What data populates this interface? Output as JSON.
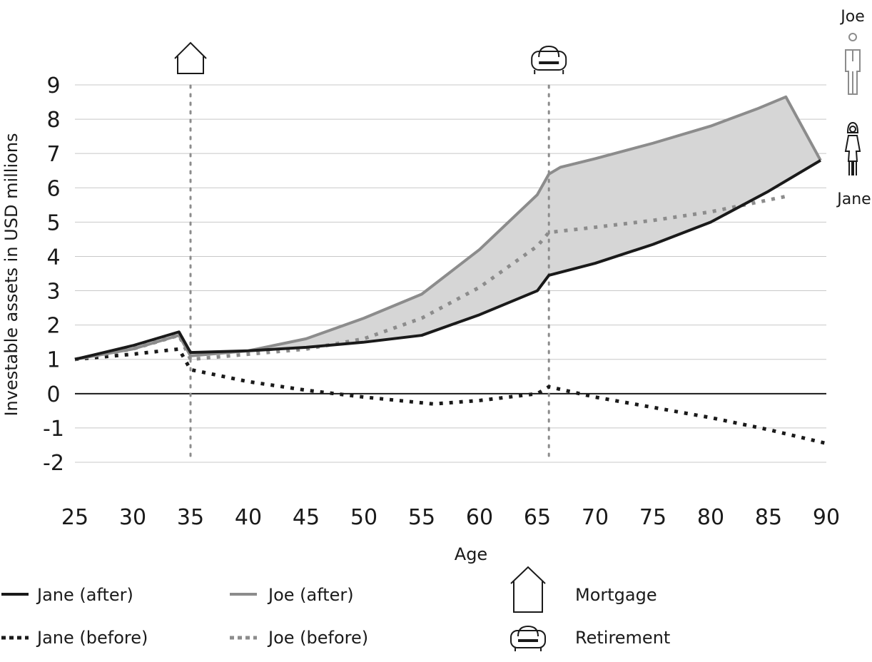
{
  "chart_data": {
    "type": "line",
    "title": "",
    "xlabel": "Age",
    "ylabel": "Investable assets in USD millions",
    "xlim": [
      25,
      90
    ],
    "ylim": [
      -2,
      9
    ],
    "x_ticks": [
      "25",
      "30",
      "35",
      "40",
      "45",
      "50",
      "55",
      "60",
      "65",
      "70",
      "75",
      "80",
      "85",
      "90"
    ],
    "y_ticks": [
      "9",
      "8",
      "7",
      "6",
      "5",
      "4",
      "3",
      "2",
      "1",
      "0",
      "-1",
      "-2"
    ],
    "grid": true,
    "shaded_region": "between Joe (after) and Jane (after)",
    "events": [
      {
        "name": "Mortgage",
        "age": 35,
        "icon": "house-icon"
      },
      {
        "name": "Retirement",
        "age": 66,
        "icon": "armchair-icon"
      }
    ],
    "series": [
      {
        "name": "Jane (after)",
        "style": "solid",
        "color": "#1a1a1a",
        "points": [
          [
            25,
            1.0
          ],
          [
            30,
            1.4
          ],
          [
            34,
            1.8
          ],
          [
            35,
            1.2
          ],
          [
            40,
            1.25
          ],
          [
            45,
            1.35
          ],
          [
            50,
            1.5
          ],
          [
            55,
            1.7
          ],
          [
            60,
            2.3
          ],
          [
            65,
            3.0
          ],
          [
            66,
            3.45
          ],
          [
            70,
            3.8
          ],
          [
            75,
            4.35
          ],
          [
            80,
            5.0
          ],
          [
            85,
            5.9
          ],
          [
            89.5,
            6.8
          ]
        ]
      },
      {
        "name": "Jane (before)",
        "style": "dotted",
        "color": "#1a1a1a",
        "points": [
          [
            25,
            1.0
          ],
          [
            30,
            1.15
          ],
          [
            34,
            1.3
          ],
          [
            35,
            0.7
          ],
          [
            40,
            0.35
          ],
          [
            45,
            0.1
          ],
          [
            50,
            -0.1
          ],
          [
            56,
            -0.3
          ],
          [
            60,
            -0.2
          ],
          [
            65,
            0.0
          ],
          [
            66,
            0.2
          ],
          [
            70,
            -0.1
          ],
          [
            75,
            -0.4
          ],
          [
            80,
            -0.7
          ],
          [
            85,
            -1.05
          ],
          [
            90,
            -1.45
          ]
        ]
      },
      {
        "name": "Joe (after)",
        "style": "solid",
        "color": "#8c8c8c",
        "points": [
          [
            25,
            1.0
          ],
          [
            30,
            1.3
          ],
          [
            34,
            1.7
          ],
          [
            35,
            1.1
          ],
          [
            40,
            1.25
          ],
          [
            45,
            1.6
          ],
          [
            50,
            2.2
          ],
          [
            55,
            2.9
          ],
          [
            60,
            4.2
          ],
          [
            65,
            5.8
          ],
          [
            66,
            6.4
          ],
          [
            67,
            6.6
          ],
          [
            70,
            6.85
          ],
          [
            75,
            7.3
          ],
          [
            80,
            7.8
          ],
          [
            84,
            8.3
          ],
          [
            86.5,
            8.65
          ],
          [
            89.5,
            6.8
          ]
        ]
      },
      {
        "name": "Joe (before)",
        "style": "dotted",
        "color": "#8c8c8c",
        "points": [
          [
            25,
            1.0
          ],
          [
            30,
            1.3
          ],
          [
            34,
            1.7
          ],
          [
            35,
            1.0
          ],
          [
            40,
            1.15
          ],
          [
            45,
            1.3
          ],
          [
            50,
            1.6
          ],
          [
            55,
            2.2
          ],
          [
            60,
            3.1
          ],
          [
            65,
            4.3
          ],
          [
            66,
            4.7
          ],
          [
            70,
            4.85
          ],
          [
            75,
            5.05
          ],
          [
            80,
            5.3
          ],
          [
            86.5,
            5.75
          ]
        ]
      }
    ]
  },
  "people": {
    "joe": {
      "label": "Joe",
      "icon": "man-icon"
    },
    "jane": {
      "label": "Jane",
      "icon": "woman-icon"
    }
  },
  "legend": [
    {
      "label": "Jane (after)",
      "style": "solid",
      "color": "#1a1a1a"
    },
    {
      "label": "Jane (before)",
      "style": "dotted",
      "color": "#1a1a1a"
    },
    {
      "label": "Joe (after)",
      "style": "solid",
      "color": "#8c8c8c"
    },
    {
      "label": "Joe (before)",
      "style": "dotted",
      "color": "#8c8c8c"
    },
    {
      "label": "Mortgage",
      "icon": "house-icon"
    },
    {
      "label": "Retirement",
      "icon": "armchair-icon"
    }
  ],
  "colors": {
    "fill": "#d6d6d6",
    "grid": "#c8c8c8",
    "dark": "#1a1a1a",
    "grey": "#8c8c8c"
  }
}
